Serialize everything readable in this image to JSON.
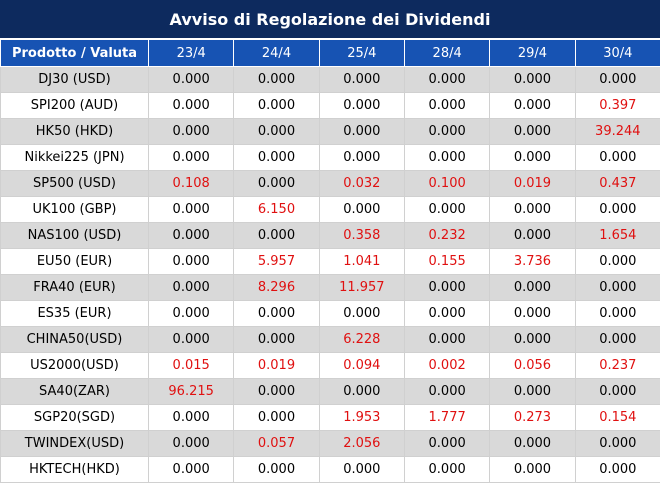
{
  "title": "Avviso di Regolazione dei Dividendi",
  "header": [
    "Prodotto / Valuta",
    "23/4",
    "24/4",
    "25/4",
    "28/4",
    "29/4",
    "30/4"
  ],
  "colors": {
    "title_bg": "#0d2a5e",
    "header_bg": "#1753b3",
    "shade_row": "#d9d9d9",
    "highlight": "#e01010"
  },
  "rows": [
    {
      "name": "DJ30 (USD)",
      "values": [
        "0.000",
        "0.000",
        "0.000",
        "0.000",
        "0.000",
        "0.000"
      ]
    },
    {
      "name": "SPI200 (AUD)",
      "values": [
        "0.000",
        "0.000",
        "0.000",
        "0.000",
        "0.000",
        "0.397"
      ]
    },
    {
      "name": "HK50 (HKD)",
      "values": [
        "0.000",
        "0.000",
        "0.000",
        "0.000",
        "0.000",
        "39.244"
      ]
    },
    {
      "name": "Nikkei225 (JPN)",
      "values": [
        "0.000",
        "0.000",
        "0.000",
        "0.000",
        "0.000",
        "0.000"
      ]
    },
    {
      "name": "SP500 (USD)",
      "values": [
        "0.108",
        "0.000",
        "0.032",
        "0.100",
        "0.019",
        "0.437"
      ]
    },
    {
      "name": "UK100 (GBP)",
      "values": [
        "0.000",
        "6.150",
        "0.000",
        "0.000",
        "0.000",
        "0.000"
      ]
    },
    {
      "name": "NAS100 (USD)",
      "values": [
        "0.000",
        "0.000",
        "0.358",
        "0.232",
        "0.000",
        "1.654"
      ]
    },
    {
      "name": "EU50 (EUR)",
      "values": [
        "0.000",
        "5.957",
        "1.041",
        "0.155",
        "3.736",
        "0.000"
      ]
    },
    {
      "name": "FRA40 (EUR)",
      "values": [
        "0.000",
        "8.296",
        "11.957",
        "0.000",
        "0.000",
        "0.000"
      ]
    },
    {
      "name": "ES35 (EUR)",
      "values": [
        "0.000",
        "0.000",
        "0.000",
        "0.000",
        "0.000",
        "0.000"
      ]
    },
    {
      "name": "CHINA50(USD)",
      "values": [
        "0.000",
        "0.000",
        "6.228",
        "0.000",
        "0.000",
        "0.000"
      ]
    },
    {
      "name": "US2000(USD)",
      "values": [
        "0.015",
        "0.019",
        "0.094",
        "0.002",
        "0.056",
        "0.237"
      ]
    },
    {
      "name": "SA40(ZAR)",
      "values": [
        "96.215",
        "0.000",
        "0.000",
        "0.000",
        "0.000",
        "0.000"
      ]
    },
    {
      "name": "SGP20(SGD)",
      "values": [
        "0.000",
        "0.000",
        "1.953",
        "1.777",
        "0.273",
        "0.154"
      ]
    },
    {
      "name": "TWINDEX(USD)",
      "values": [
        "0.000",
        "0.057",
        "2.056",
        "0.000",
        "0.000",
        "0.000"
      ]
    },
    {
      "name": "HKTECH(HKD)",
      "values": [
        "0.000",
        "0.000",
        "0.000",
        "0.000",
        "0.000",
        "0.000"
      ]
    }
  ]
}
